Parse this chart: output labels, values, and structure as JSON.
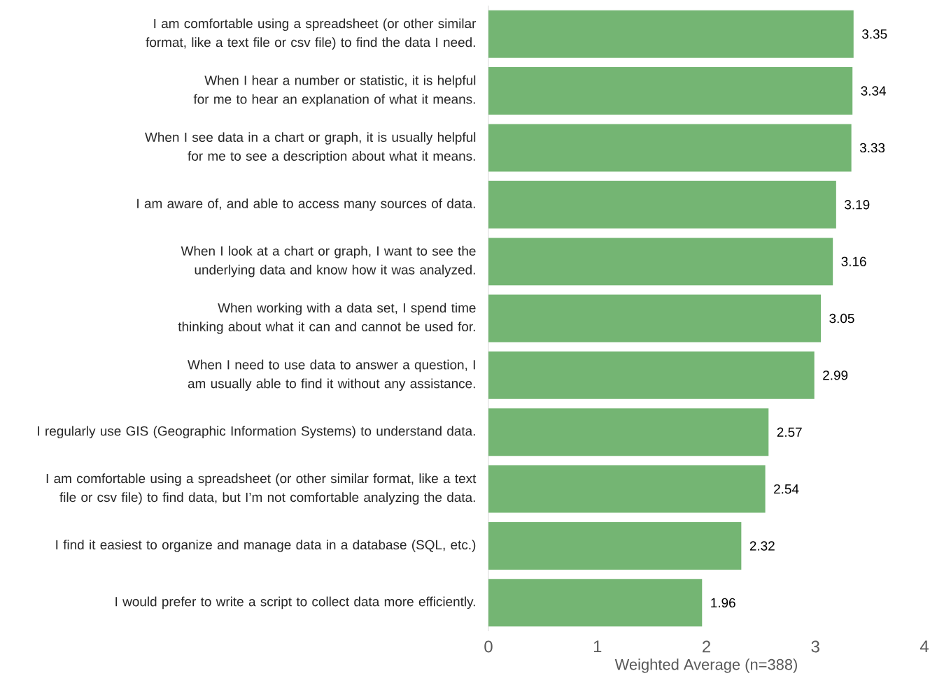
{
  "chart_data": {
    "type": "bar",
    "orientation": "horizontal",
    "categories": [
      "I am comfortable using a spreadsheet (or other similar format, like a text file or csv file) to find the data I need.",
      "When I hear a number or statistic, it is helpful for me to hear an explanation of what it means.",
      "When I see data in a chart or graph, it is usually helpful for me to see a description about what it means.",
      "I am aware of, and able to access many sources of data.",
      "When I look at a chart or graph, I want to see the underlying data and know how it was analyzed.",
      "When working with a data set, I spend time thinking about what it can and cannot be used for.",
      "When I need to use data to answer a question, I am usually able to find it without any assistance.",
      "I regularly use GIS (Geographic Information Systems) to understand data.",
      "I am comfortable using a spreadsheet (or other similar format, like a text file or csv file) to find data, but I’m not comfortable analyzing the data.",
      "I find it easiest to organize and manage data in a database (SQL, etc.)",
      "I would prefer to write a script to collect data more efficiently."
    ],
    "values": [
      3.35,
      3.34,
      3.33,
      3.19,
      3.16,
      3.05,
      2.99,
      2.57,
      2.54,
      2.32,
      1.96
    ],
    "color": "#74b573",
    "xlim": [
      0,
      4
    ],
    "xticks": [
      0,
      1,
      2,
      3,
      4
    ],
    "xlabel": "Weighted Average (n=388)",
    "data_labels": true
  }
}
